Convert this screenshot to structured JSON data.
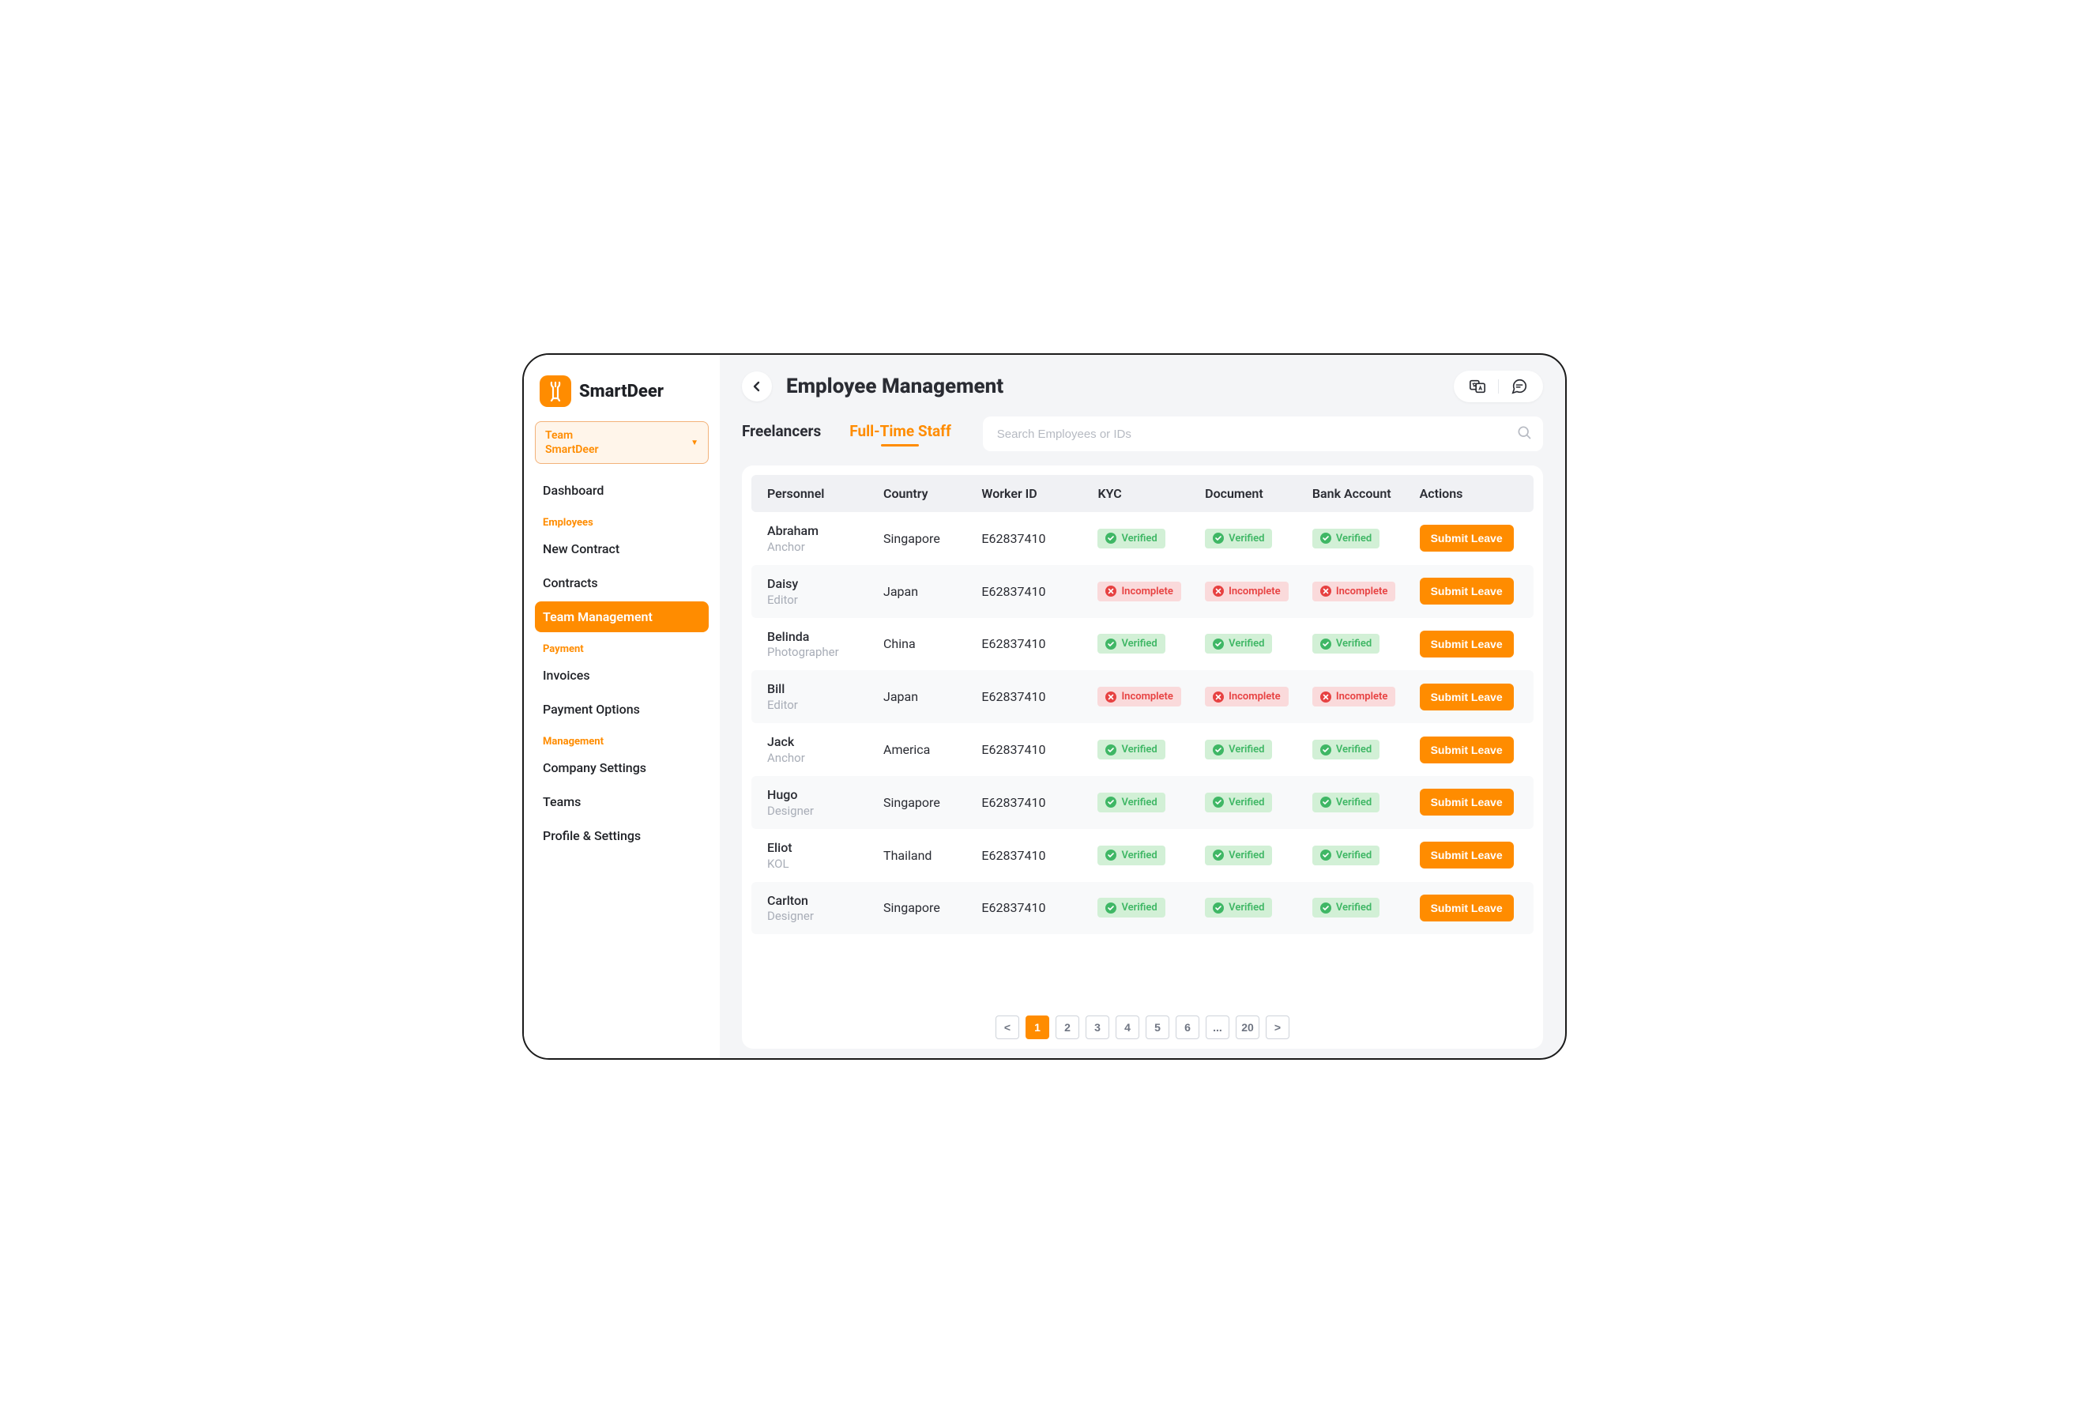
{
  "brand": {
    "name": "SmartDeer"
  },
  "colors": {
    "accent": "#ff8c00",
    "text": "#2a2c33",
    "muted": "#a8adb7",
    "bg": "#f4f5f7",
    "verified_bg": "#d2f0d6",
    "verified_fg": "#3fb765",
    "incomplete_bg": "#fadadb",
    "incomplete_fg": "#e74141"
  },
  "sidebar": {
    "team_selector": {
      "line1": "Team",
      "line2": "SmartDeer"
    },
    "items": [
      {
        "label": "Dashboard",
        "type": "item",
        "active": false
      },
      {
        "label": "Employees",
        "type": "section"
      },
      {
        "label": "New Contract",
        "type": "item",
        "active": false
      },
      {
        "label": "Contracts",
        "type": "item",
        "active": false
      },
      {
        "label": "Team Management",
        "type": "item",
        "active": true
      },
      {
        "label": "Payment",
        "type": "section"
      },
      {
        "label": "Invoices",
        "type": "item",
        "active": false
      },
      {
        "label": "Payment Options",
        "type": "item",
        "active": false
      },
      {
        "label": "Management",
        "type": "section"
      },
      {
        "label": "Company Settings",
        "type": "item",
        "active": false
      },
      {
        "label": "Teams",
        "type": "item",
        "active": false
      },
      {
        "label": "Profile & Settings",
        "type": "item",
        "active": false
      }
    ]
  },
  "header": {
    "title": "Employee Management",
    "icons": [
      "translate-icon",
      "chat-icon"
    ]
  },
  "tabs": [
    {
      "label": "Freelancers",
      "active": false
    },
    {
      "label": "Full-Time Staff",
      "active": true
    }
  ],
  "search": {
    "placeholder": "Search Employees or IDs",
    "value": ""
  },
  "table": {
    "columns": [
      "Personnel",
      "Country",
      "Worker ID",
      "KYC",
      "Document",
      "Bank Account",
      "Actions"
    ],
    "status_labels": {
      "verified": "Verified",
      "incomplete": "Incomplete"
    },
    "action_label": "Submit Leave",
    "rows": [
      {
        "name": "Abraham",
        "role": "Anchor",
        "country": "Singapore",
        "worker_id": "E62837410",
        "kyc": "verified",
        "document": "verified",
        "bank": "verified"
      },
      {
        "name": "Daisy",
        "role": "Editor",
        "country": "Japan",
        "worker_id": "E62837410",
        "kyc": "incomplete",
        "document": "incomplete",
        "bank": "incomplete"
      },
      {
        "name": "Belinda",
        "role": "Photographer",
        "country": "China",
        "worker_id": "E62837410",
        "kyc": "verified",
        "document": "verified",
        "bank": "verified"
      },
      {
        "name": "Bill",
        "role": "Editor",
        "country": "Japan",
        "worker_id": "E62837410",
        "kyc": "incomplete",
        "document": "incomplete",
        "bank": "incomplete"
      },
      {
        "name": "Jack",
        "role": "Anchor",
        "country": "America",
        "worker_id": "E62837410",
        "kyc": "verified",
        "document": "verified",
        "bank": "verified"
      },
      {
        "name": "Hugo",
        "role": "Designer",
        "country": "Singapore",
        "worker_id": "E62837410",
        "kyc": "verified",
        "document": "verified",
        "bank": "verified"
      },
      {
        "name": "Eliot",
        "role": "KOL",
        "country": "Thailand",
        "worker_id": "E62837410",
        "kyc": "verified",
        "document": "verified",
        "bank": "verified"
      },
      {
        "name": "Carlton",
        "role": "Designer",
        "country": "Singapore",
        "worker_id": "E62837410",
        "kyc": "verified",
        "document": "verified",
        "bank": "verified"
      }
    ]
  },
  "pagination": {
    "prev": "<",
    "next": ">",
    "pages": [
      "1",
      "2",
      "3",
      "4",
      "5",
      "6",
      "...",
      "20"
    ],
    "active": "1"
  }
}
